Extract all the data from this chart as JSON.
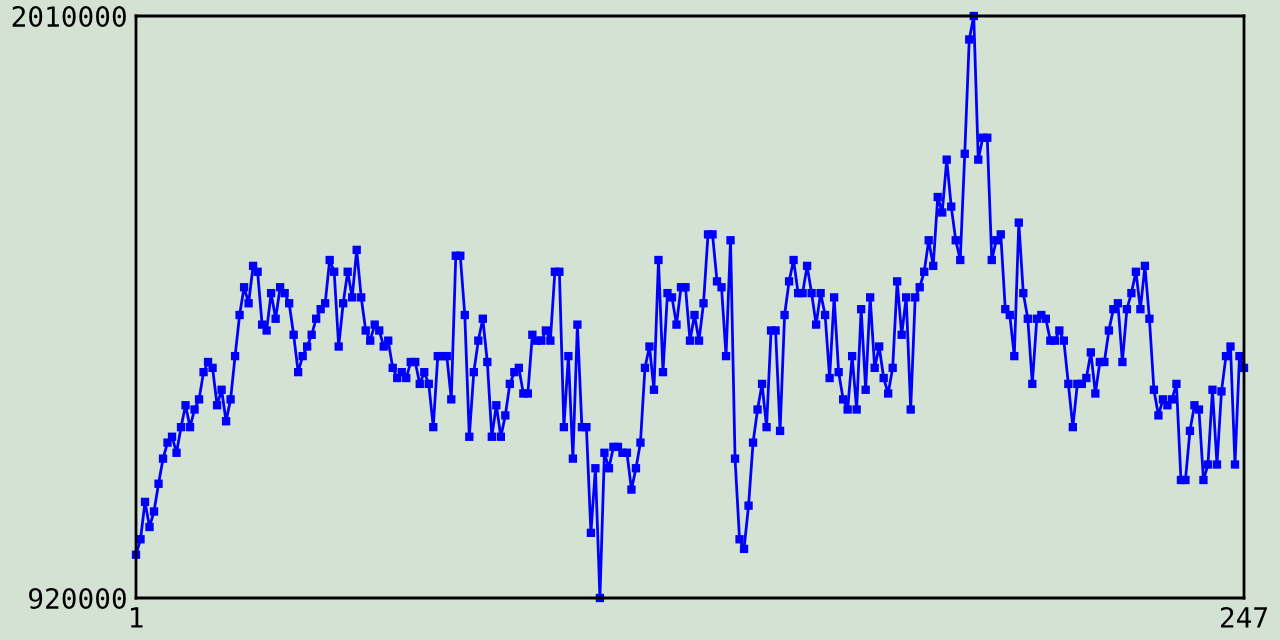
{
  "chart_data": {
    "type": "line",
    "x": [
      1,
      2,
      3,
      4,
      5,
      6,
      7,
      8,
      9,
      10,
      11,
      12,
      13,
      14,
      15,
      16,
      17,
      18,
      19,
      20,
      21,
      22,
      23,
      24,
      25,
      26,
      27,
      28,
      29,
      30,
      31,
      32,
      33,
      34,
      35,
      36,
      37,
      38,
      39,
      40,
      41,
      42,
      43,
      44,
      45,
      46,
      47,
      48,
      49,
      50,
      51,
      52,
      53,
      54,
      55,
      56,
      57,
      58,
      59,
      60,
      61,
      62,
      63,
      64,
      65,
      66,
      67,
      68,
      69,
      70,
      71,
      72,
      73,
      74,
      75,
      76,
      77,
      78,
      79,
      80,
      81,
      82,
      83,
      84,
      85,
      86,
      87,
      88,
      89,
      90,
      91,
      92,
      93,
      94,
      95,
      96,
      97,
      98,
      99,
      100,
      101,
      102,
      103,
      104,
      105,
      106,
      107,
      108,
      109,
      110,
      111,
      112,
      113,
      114,
      115,
      116,
      117,
      118,
      119,
      120,
      121,
      122,
      123,
      124,
      125,
      126,
      127,
      128,
      129,
      130,
      131,
      132,
      133,
      134,
      135,
      136,
      137,
      138,
      139,
      140,
      141,
      142,
      143,
      144,
      145,
      146,
      147,
      148,
      149,
      150,
      151,
      152,
      153,
      154,
      155,
      156,
      157,
      158,
      159,
      160,
      161,
      162,
      163,
      164,
      165,
      166,
      167,
      168,
      169,
      170,
      171,
      172,
      173,
      174,
      175,
      176,
      177,
      178,
      179,
      180,
      181,
      182,
      183,
      184,
      185,
      186,
      187,
      188,
      189,
      190,
      191,
      192,
      193,
      194,
      195,
      196,
      197,
      198,
      199,
      200,
      201,
      202,
      203,
      204,
      205,
      206,
      207,
      208,
      209,
      210,
      211,
      212,
      213,
      214,
      215,
      216,
      217,
      218,
      219,
      220,
      221,
      222,
      223,
      224,
      225,
      226,
      227,
      228,
      229,
      230,
      231,
      232,
      233,
      234,
      235,
      236,
      237,
      238,
      239,
      240,
      241,
      242,
      243,
      244,
      245,
      246,
      247
    ],
    "series": [
      {
        "color": "#0000ff",
        "values": [
          1001000,
          1030000,
          1100000,
          1053000,
          1082000,
          1134000,
          1181000,
          1211000,
          1222000,
          1192000,
          1240000,
          1281000,
          1240000,
          1273000,
          1292000,
          1343000,
          1362000,
          1351000,
          1281000,
          1310000,
          1251000,
          1292000,
          1373000,
          1450000,
          1502000,
          1472000,
          1542000,
          1531000,
          1432000,
          1421000,
          1491000,
          1443000,
          1502000,
          1491000,
          1472000,
          1413000,
          1343000,
          1373000,
          1391000,
          1413000,
          1443000,
          1461000,
          1472000,
          1553000,
          1531000,
          1391000,
          1472000,
          1531000,
          1483000,
          1572000,
          1483000,
          1421000,
          1402000,
          1432000,
          1421000,
          1391000,
          1402000,
          1351000,
          1332000,
          1343000,
          1332000,
          1362000,
          1362000,
          1321000,
          1343000,
          1321000,
          1240000,
          1373000,
          1373000,
          1373000,
          1292000,
          1561000,
          1561000,
          1450000,
          1222000,
          1343000,
          1402000,
          1443000,
          1362000,
          1222000,
          1281000,
          1222000,
          1262000,
          1321000,
          1343000,
          1351000,
          1303000,
          1303000,
          1413000,
          1402000,
          1402000,
          1421000,
          1402000,
          1531000,
          1531000,
          1240000,
          1373000,
          1181000,
          1432000,
          1240000,
          1240000,
          1042000,
          1163000,
          920000,
          1192000,
          1163000,
          1203000,
          1203000,
          1192000,
          1192000,
          1123000,
          1163000,
          1211000,
          1351000,
          1391000,
          1310000,
          1553000,
          1343000,
          1491000,
          1483000,
          1432000,
          1502000,
          1502000,
          1402000,
          1450000,
          1402000,
          1472000,
          1601000,
          1601000,
          1513000,
          1502000,
          1373000,
          1590000,
          1181000,
          1030000,
          1012000,
          1093000,
          1211000,
          1273000,
          1321000,
          1240000,
          1421000,
          1421000,
          1233000,
          1450000,
          1513000,
          1553000,
          1491000,
          1491000,
          1542000,
          1491000,
          1432000,
          1491000,
          1450000,
          1332000,
          1483000,
          1343000,
          1292000,
          1273000,
          1373000,
          1273000,
          1461000,
          1310000,
          1483000,
          1351000,
          1391000,
          1332000,
          1303000,
          1351000,
          1513000,
          1413000,
          1483000,
          1273000,
          1483000,
          1502000,
          1531000,
          1590000,
          1542000,
          1671000,
          1642000,
          1741000,
          1653000,
          1590000,
          1553000,
          1752000,
          1966000,
          2010000,
          1741000,
          1782000,
          1782000,
          1553000,
          1590000,
          1601000,
          1461000,
          1450000,
          1373000,
          1623000,
          1491000,
          1443000,
          1321000,
          1443000,
          1450000,
          1443000,
          1402000,
          1402000,
          1421000,
          1402000,
          1321000,
          1240000,
          1321000,
          1321000,
          1332000,
          1380000,
          1303000,
          1362000,
          1362000,
          1421000,
          1461000,
          1472000,
          1362000,
          1461000,
          1491000,
          1531000,
          1461000,
          1542000,
          1443000,
          1310000,
          1262000,
          1292000,
          1281000,
          1292000,
          1321000,
          1141000,
          1141000,
          1233000,
          1281000,
          1273000,
          1141000,
          1170000,
          1310000,
          1170000,
          1307000,
          1373000,
          1391000,
          1170000,
          1373000,
          1351000
        ]
      }
    ],
    "xlim": [
      1,
      247
    ],
    "ylim": [
      920000,
      2010000
    ],
    "xticks": [
      1,
      247
    ],
    "yticks": [
      920000,
      2010000
    ],
    "marker": "square"
  }
}
